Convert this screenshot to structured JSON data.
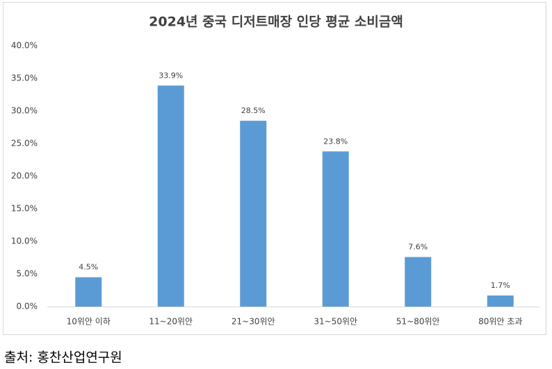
{
  "chart_data": {
    "type": "bar",
    "title": "2024년 중국 디저트매장 인당 평균 소비금액",
    "categories": [
      "10위안 이하",
      "11~20위안",
      "21~30위안",
      "31~50위안",
      "51~80위안",
      "80위안 초과"
    ],
    "values": [
      4.5,
      33.9,
      28.5,
      23.8,
      7.6,
      1.7
    ],
    "value_labels": [
      "4.5%",
      "33.9%",
      "28.5%",
      "23.8%",
      "7.6%",
      "1.7%"
    ],
    "color": "#5b9bd5",
    "ylim": [
      0,
      40
    ],
    "yticks": [
      {
        "value": 0,
        "label": "0.0%"
      },
      {
        "value": 5,
        "label": "5.0%"
      },
      {
        "value": 10,
        "label": "10.0%"
      },
      {
        "value": 15,
        "label": "15.0%"
      },
      {
        "value": 20,
        "label": "20.0%"
      },
      {
        "value": 25,
        "label": "25.0%"
      },
      {
        "value": 30,
        "label": "30.0%"
      },
      {
        "value": 35,
        "label": "35.0%"
      },
      {
        "value": 40,
        "label": "40.0%"
      }
    ],
    "grid": false
  },
  "source": "출처:  홍찬산업연구원"
}
